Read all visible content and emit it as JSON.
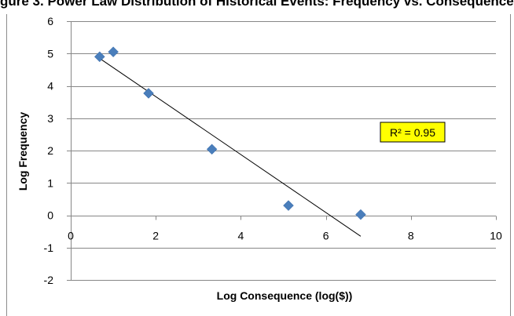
{
  "chart_data": {
    "type": "scatter",
    "title": "gure 3. Power Law Distribution of Historical Events: Frequency vs. Consequences",
    "xlabel": "Log Consequence (log($))",
    "ylabel": "Log Frequency",
    "xlim": [
      0,
      10
    ],
    "ylim": [
      -2,
      6
    ],
    "xticks": [
      0,
      2,
      4,
      6,
      8,
      10
    ],
    "yticks": [
      -2,
      -1,
      0,
      1,
      2,
      3,
      4,
      5,
      6
    ],
    "grid": "horizontal",
    "marker_color": "#4a7ebb",
    "series": [
      {
        "x": [
          0.68,
          1.0,
          1.83,
          3.32,
          5.12,
          6.82
        ],
        "y": [
          4.9,
          5.05,
          3.77,
          2.04,
          0.3,
          0.02
        ]
      }
    ],
    "trendline": {
      "x": [
        0.68,
        6.82
      ],
      "y": [
        4.85,
        -0.65
      ]
    },
    "annotation": {
      "text": "R² = 0.95",
      "background": "#ffff00"
    }
  }
}
